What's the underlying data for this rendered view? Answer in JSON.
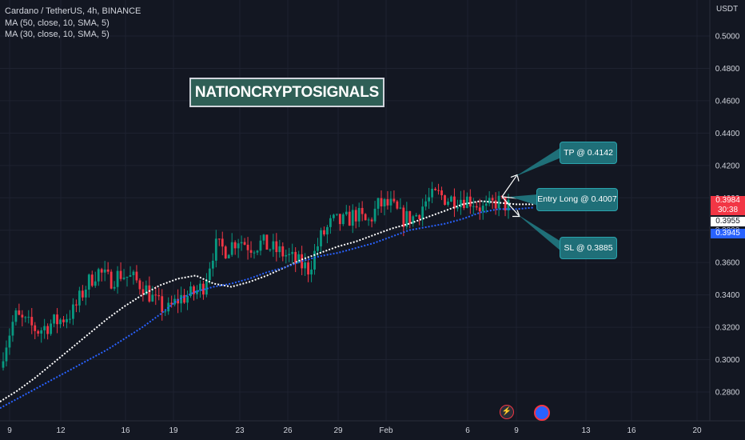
{
  "chart_data": {
    "type": "candlestick",
    "symbol": "Cardano / TetherUS, 4h, BINANCE",
    "indicators": [
      {
        "label": "MA (50, close, 10, SMA, 5)",
        "color": "#ffffff"
      },
      {
        "label": "MA (30, close, 10, SMA, 5)",
        "color": "#2962ff"
      }
    ],
    "price_unit": "USDT",
    "ylim": [
      0.27,
      0.51
    ],
    "y_ticks": [
      "0.5000",
      "0.4800",
      "0.4600",
      "0.4400",
      "0.4200",
      "0.4000",
      "0.3800",
      "0.3600",
      "0.3400",
      "0.3200",
      "0.3000",
      "0.2800"
    ],
    "x_ticks": [
      "9",
      "12",
      "16",
      "19",
      "23",
      "26",
      "29",
      "Feb",
      "6",
      "9",
      "13",
      "16",
      "20"
    ],
    "grid": true,
    "close_approx": [
      0.305,
      0.327,
      0.322,
      0.318,
      0.322,
      0.325,
      0.33,
      0.345,
      0.355,
      0.349,
      0.353,
      0.35,
      0.345,
      0.335,
      0.33,
      0.338,
      0.34,
      0.345,
      0.37,
      0.368,
      0.375,
      0.37,
      0.372,
      0.368,
      0.365,
      0.36,
      0.356,
      0.375,
      0.385,
      0.385,
      0.39,
      0.384,
      0.396,
      0.395,
      0.387,
      0.388,
      0.398,
      0.402,
      0.399,
      0.4,
      0.398,
      0.392,
      0.398,
      0.395
    ],
    "moving_averages": {
      "ma50": [
        0.274,
        0.281,
        0.289,
        0.298,
        0.307,
        0.316,
        0.325,
        0.333,
        0.34,
        0.346,
        0.35,
        0.352,
        0.347,
        0.345,
        0.348,
        0.352,
        0.357,
        0.362,
        0.366,
        0.37,
        0.373,
        0.377,
        0.381,
        0.384,
        0.388,
        0.392,
        0.396,
        0.398,
        0.397,
        0.396,
        0.396
      ],
      "ma30": [
        0.27,
        0.276,
        0.282,
        0.288,
        0.294,
        0.3,
        0.306,
        0.313,
        0.32,
        0.328,
        0.337,
        0.342,
        0.345,
        0.347,
        0.35,
        0.354,
        0.357,
        0.361,
        0.364,
        0.366,
        0.369,
        0.372,
        0.376,
        0.38,
        0.382,
        0.384,
        0.387,
        0.391,
        0.393,
        0.393,
        0.394
      ]
    },
    "annotations": [
      {
        "text": "TP @ 0.4142",
        "price": 0.4142
      },
      {
        "text": "Entry Long @ 0.4007",
        "price": 0.4007
      },
      {
        "text": "SL @ 0.3885",
        "price": 0.3885
      }
    ],
    "watermark": "NATIONCRYPTOSIGNALS",
    "price_tags": [
      {
        "value": "0.3984",
        "sub": "30:38",
        "color": "#f23645"
      },
      {
        "value": "0.3955",
        "color": "#ffffff",
        "text_color": "#131722"
      },
      {
        "value": "0.3945",
        "color": "#2962ff"
      }
    ],
    "colors": {
      "up": "#089981",
      "down": "#f23645",
      "background": "#131722",
      "grid": "#1e2230"
    }
  }
}
